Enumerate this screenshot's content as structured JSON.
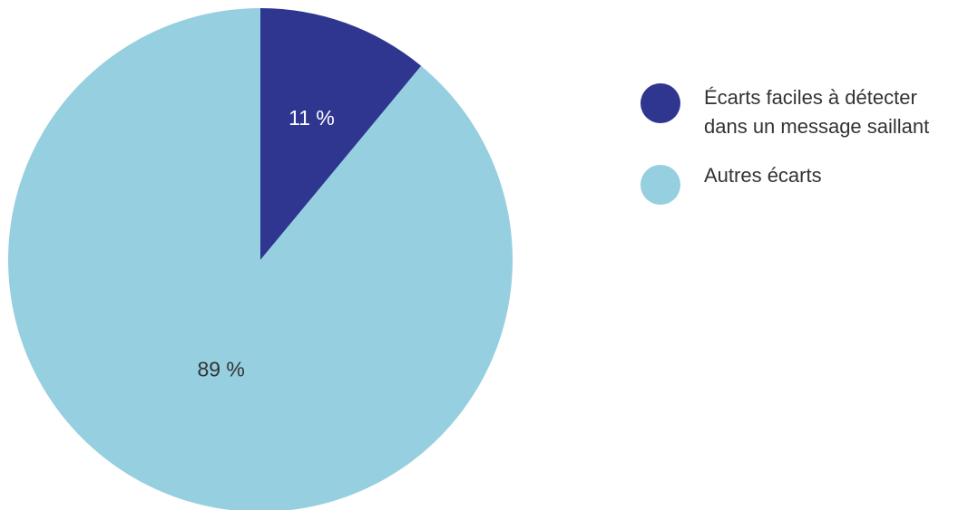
{
  "colors": {
    "dark": "#2e3690",
    "light": "#96cfe0",
    "label_on_dark": "#ffffff",
    "label_on_light": "#333333"
  },
  "chart_data": {
    "type": "pie",
    "title": "",
    "slices": [
      {
        "name": "Écarts faciles à détecter dans un message saillant",
        "value": 11,
        "label": "11 %"
      },
      {
        "name": "Autres écarts",
        "value": 89,
        "label": "89 %"
      }
    ],
    "legend": {
      "placement": "right",
      "items": [
        {
          "line1": "Écarts faciles à détecter",
          "line2": "dans un message saillant"
        },
        {
          "line1": "Autres écarts",
          "line2": ""
        }
      ]
    }
  }
}
